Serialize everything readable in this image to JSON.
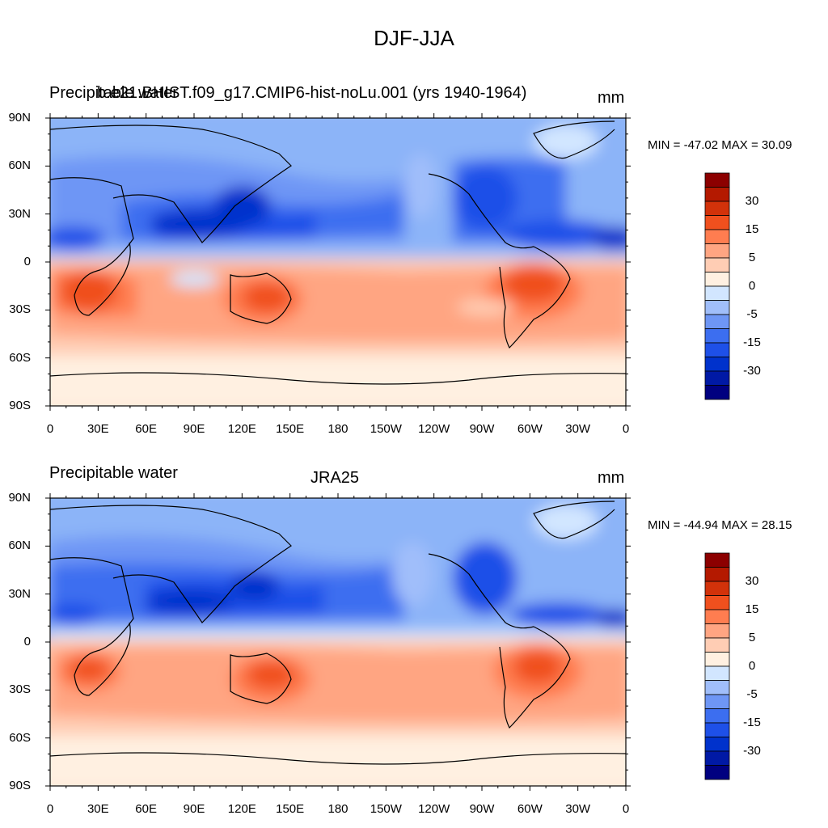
{
  "title": "DJF-JJA",
  "colors": {
    "levels": [
      "#000080",
      "#0019A5",
      "#0032CC",
      "#1E50E8",
      "#3C6EF0",
      "#6E96F5",
      "#A0BEFA",
      "#D2E6FF",
      "#FFF0E1",
      "#FFCDB4",
      "#FFA582",
      "#FF7D50",
      "#F0501E",
      "#D2320A",
      "#B41900",
      "#8C0000"
    ],
    "ocean_bg": "#8CB4F8"
  },
  "panels": [
    {
      "left_label": "Precipitable water",
      "center_label": "b.e21.BHIST.f09_g17.CMIP6-hist-noLu.001 (yrs 1940-1964)",
      "right_label": "mm",
      "minmax": "MIN = -47.02 MAX =  30.09"
    },
    {
      "left_label": "Precipitable water",
      "center_label": "JRA25",
      "right_label": "mm",
      "minmax": "MIN = -44.94 MAX =  28.15"
    }
  ],
  "lat_ticks": [
    "90N",
    "60N",
    "30N",
    "0",
    "30S",
    "60S",
    "90S"
  ],
  "lon_ticks": [
    "0",
    "30E",
    "60E",
    "90E",
    "120E",
    "150E",
    "180",
    "150W",
    "120W",
    "90W",
    "60W",
    "30W",
    "0"
  ],
  "colorbar_labels": [
    "30",
    "15",
    "5",
    "0",
    "-5",
    "-15",
    "-30"
  ]
}
